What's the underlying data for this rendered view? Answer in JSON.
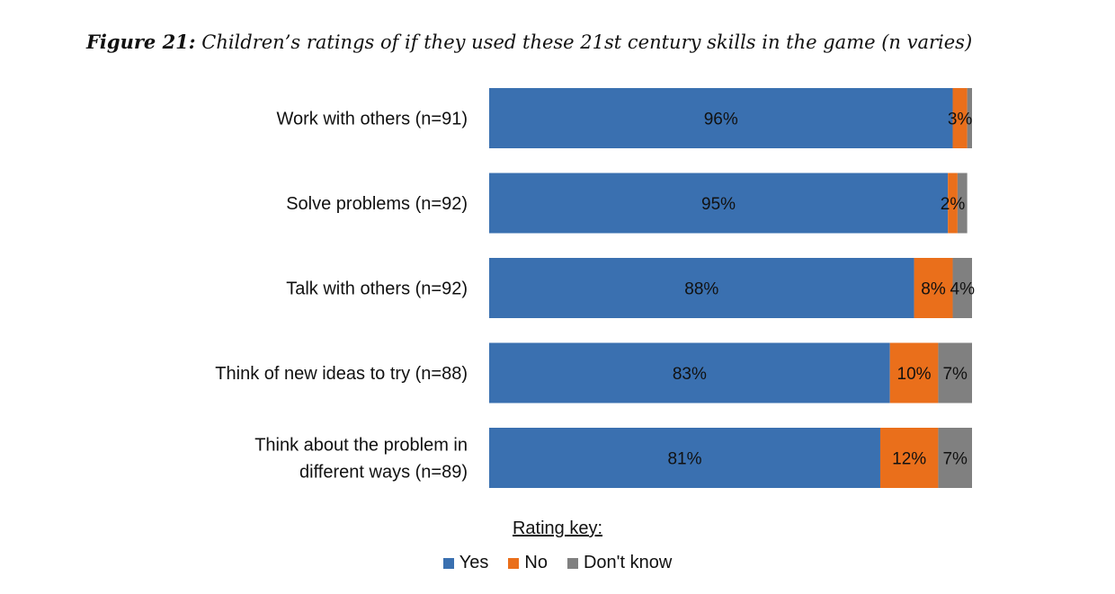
{
  "title": {
    "figure_label": "Figure 21:",
    "text": "Children’s ratings of if they used these 21st century skills in the game (n varies)"
  },
  "chart_data": {
    "type": "bar",
    "orientation": "horizontal",
    "stacked": true,
    "percent_stacked": true,
    "categories": [
      [
        "Work with others (n=91)"
      ],
      [
        "Solve problems (n=92)"
      ],
      [
        "Talk with others (n=92)"
      ],
      [
        "Think of new ideas to try (n=88)"
      ],
      [
        "Think about the problem in",
        "different ways (n=89)"
      ]
    ],
    "series": [
      {
        "name": "Yes",
        "color": "#3a70b0",
        "values": [
          96,
          95,
          88,
          83,
          81
        ],
        "labels": [
          "96%",
          "95%",
          "88%",
          "83%",
          "81%"
        ]
      },
      {
        "name": "No",
        "color": "#ea6f1b",
        "values": [
          3,
          2,
          8,
          10,
          12
        ],
        "labels": [
          "3%",
          "2%",
          "8%",
          "10%",
          "12%"
        ]
      },
      {
        "name": "Don't know",
        "color": "#808080",
        "values": [
          1,
          2,
          4,
          7,
          7
        ],
        "labels": [
          "",
          "",
          "4%",
          "7%",
          "7%"
        ]
      }
    ],
    "xlim": [
      0,
      100
    ],
    "grid": false,
    "legend_title": "Rating key:",
    "legend_position": "bottom"
  }
}
